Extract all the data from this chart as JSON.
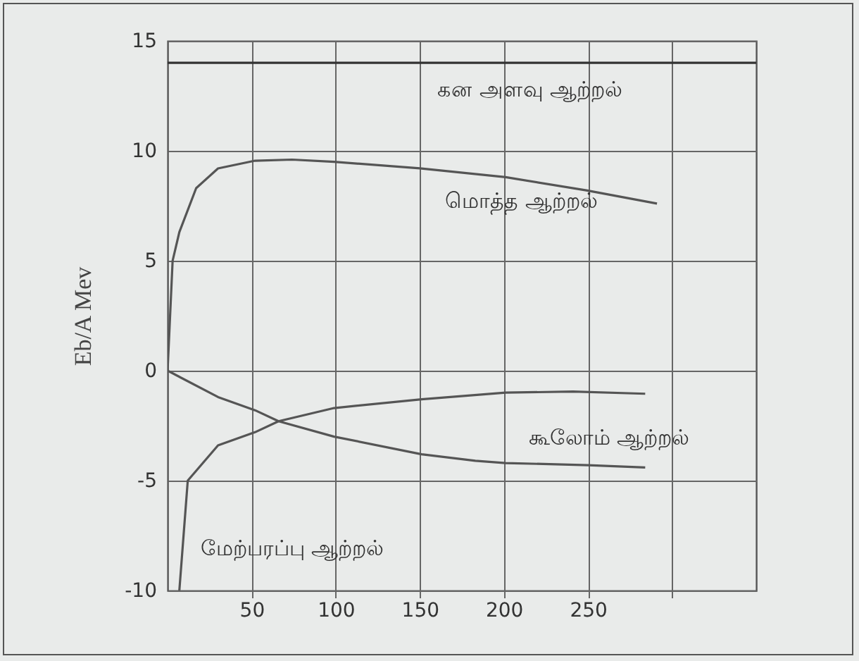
{
  "chart_data": {
    "type": "line",
    "ylabel": "Eb/A Mev",
    "xlim": [
      0,
      350
    ],
    "ylim": [
      -10,
      15
    ],
    "xticks": [
      50,
      100,
      150,
      200,
      250,
      {
        "value": 300,
        "label": null
      }
    ],
    "yticks": [
      -10,
      -5,
      0,
      5,
      10,
      15
    ],
    "grid": true,
    "legend": false,
    "series": [
      {
        "name": "கன அளவு ஆற்றல்",
        "color": "#333333",
        "x": [
          0,
          350
        ],
        "values": [
          14,
          14
        ]
      },
      {
        "name": "மொத்த ஆற்றல்",
        "color": "#555555",
        "x": [
          0,
          3,
          7,
          17,
          30,
          52,
          74,
          99,
          150,
          201,
          249,
          291
        ],
        "values": [
          0,
          5,
          6.3,
          8.3,
          9.2,
          9.55,
          9.6,
          9.5,
          9.2,
          8.8,
          8.2,
          7.6
        ]
      },
      {
        "name": "கூலோம் ஆற்றல்",
        "color": "#555555",
        "x": [
          0,
          30,
          52,
          66,
          99,
          151,
          183,
          201,
          250,
          284
        ],
        "values": [
          0,
          -1.2,
          -1.8,
          -2.3,
          -3.0,
          -3.8,
          -4.1,
          -4.2,
          -4.3,
          -4.4
        ]
      },
      {
        "name": "மேற்பரப்பு ஆற்றல்",
        "color": "#555555",
        "x": [
          7,
          12,
          30,
          52,
          66,
          99,
          151,
          201,
          241,
          284
        ],
        "values": [
          -10,
          -5,
          -3.4,
          -2.8,
          -2.3,
          -1.7,
          -1.3,
          -1.0,
          -0.95,
          -1.05
        ]
      }
    ]
  }
}
